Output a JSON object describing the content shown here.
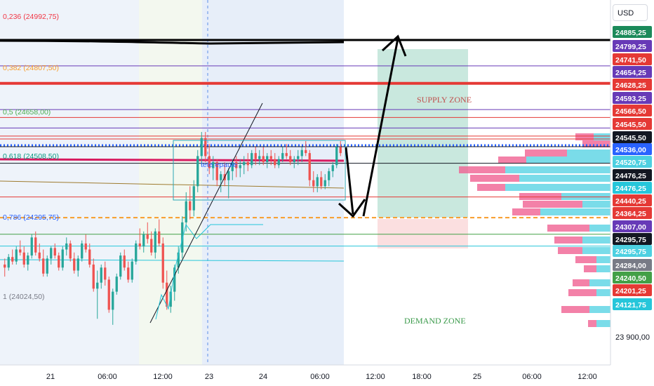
{
  "currency": "USD",
  "colors": {
    "up": "#26a69a",
    "down": "#ef5350",
    "supply_zone": "#b7e0d3",
    "demand_zone": "#f8c9cc",
    "fib_orange": "#f89d2a",
    "fib_red": "#e53935",
    "fib_gray": "#787b86",
    "purple": "#5b3fb5",
    "profile_pink": "#f06292",
    "profile_cyan": "#4dd0e1"
  },
  "chart_data": {
    "type": "candlestick",
    "ylim": [
      23850,
      25050
    ],
    "x_tick_labels": [
      "21",
      "06:00",
      "12:00",
      "23",
      "24",
      "06:00",
      "12:00",
      "18:00",
      "25",
      "06:00",
      "12:00"
    ],
    "fib_levels": [
      {
        "ratio": "0,236",
        "price": "24992,75",
        "color": "#f23645"
      },
      {
        "ratio": "0,382",
        "price": "24807,50",
        "color": "#f89d2a"
      },
      {
        "ratio": "0,5",
        "price": "24658,00",
        "color": "#4caf50"
      },
      {
        "ratio": "0,618",
        "price": "24508,50",
        "color": "#089981"
      },
      {
        "ratio": "0,786",
        "price": "24295,75",
        "color": "#2962ff"
      },
      {
        "ratio": "1",
        "price": "24024,50",
        "color": "#787b86"
      }
    ],
    "price_labels": [
      {
        "text": "24885,25",
        "value": 24885.25,
        "color": "#1b8a5a"
      },
      {
        "text": "24799,25",
        "value": 24799.25,
        "color": "#673ab7"
      },
      {
        "text": "24741,50",
        "value": 24741.5,
        "color": "#e53935"
      },
      {
        "text": "24654,25",
        "value": 24654.25,
        "color": "#673ab7"
      },
      {
        "text": "24628,25",
        "value": 24628.25,
        "color": "#e53935"
      },
      {
        "text": "24593,25",
        "value": 24593.25,
        "color": "#673ab7"
      },
      {
        "text": "24566,50",
        "value": 24566.5,
        "color": "#e53935"
      },
      {
        "text": "24545,50",
        "value": 24545.5,
        "color": "#e53935"
      },
      {
        "text": "24545,50",
        "value": 24545.5,
        "color": "#131722"
      },
      {
        "text": "24536,00",
        "value": 24536.0,
        "color": "#2962ff"
      },
      {
        "text": "24520,75",
        "value": 24520.75,
        "color": "#4dd0e1"
      },
      {
        "text": "24476,25",
        "value": 24476.25,
        "color": "#131722"
      },
      {
        "text": "24476,25",
        "value": 24476.25,
        "color": "#26c6da"
      },
      {
        "text": "24440,25",
        "value": 24440.25,
        "color": "#e53935"
      },
      {
        "text": "24364,25",
        "value": 24364.25,
        "color": "#e53935"
      },
      {
        "text": "24307,00",
        "value": 24307.0,
        "color": "#673ab7"
      },
      {
        "text": "24295,75",
        "value": 24295.75,
        "color": "#131722"
      },
      {
        "text": "24295,75",
        "value": 24295.75,
        "color": "#4dd0e1"
      },
      {
        "text": "24284,00",
        "value": 24284.0,
        "color": "#787b86"
      },
      {
        "text": "24240,50",
        "value": 24240.5,
        "color": "#43a047"
      },
      {
        "text": "24201,25",
        "value": 24201.25,
        "color": "#e53935"
      },
      {
        "text": "24121,75",
        "value": 24121.75,
        "color": "#26c6da"
      },
      {
        "text": "23 900,00",
        "value": 23900.0,
        "color": "none"
      }
    ],
    "horizontal_levels": [
      {
        "value": 24885.25,
        "color": "#000000",
        "style": "thick"
      },
      {
        "value": 24799.25,
        "color": "#673ab7",
        "style": "thin"
      },
      {
        "value": 24741.5,
        "color": "#e53935",
        "style": "medium"
      },
      {
        "value": 24654.25,
        "color": "#673ab7",
        "style": "thin"
      },
      {
        "value": 24628.25,
        "color": "#e53935",
        "style": "thin"
      },
      {
        "value": 24593.25,
        "color": "#673ab7",
        "style": "thin"
      },
      {
        "value": 24566.5,
        "color": "#e53935",
        "style": "thin"
      },
      {
        "value": 24536.0,
        "color": "#2962ff",
        "style": "dotted"
      },
      {
        "value": 24476.25,
        "color": "#131722",
        "style": "thin"
      },
      {
        "value": 24364.25,
        "color": "#e53935",
        "style": "thin"
      },
      {
        "value": 24295.75,
        "color": "#f89d2a",
        "style": "dashed"
      },
      {
        "value": 24240.5,
        "color": "#43a047",
        "style": "thin"
      },
      {
        "value": 24201.25,
        "color": "#26c6da",
        "style": "thin"
      }
    ],
    "annotations": {
      "supply_zone": "SUPPLY ZONE",
      "demand_zone": "DEMAND  ZONE",
      "pattern": "tete  epaule"
    },
    "candles": [
      [
        24140,
        24160,
        24100,
        24130
      ],
      [
        24130,
        24175,
        24120,
        24165
      ],
      [
        24165,
        24190,
        24140,
        24150
      ],
      [
        24150,
        24200,
        24140,
        24190
      ],
      [
        24190,
        24220,
        24170,
        24180
      ],
      [
        24180,
        24200,
        24130,
        24140
      ],
      [
        24140,
        24180,
        24120,
        24170
      ],
      [
        24170,
        24240,
        24160,
        24230
      ],
      [
        24230,
        24250,
        24170,
        24180
      ],
      [
        24180,
        24210,
        24150,
        24160
      ],
      [
        24160,
        24190,
        24100,
        24110
      ],
      [
        24110,
        24170,
        24100,
        24160
      ],
      [
        24160,
        24200,
        24140,
        24195
      ],
      [
        24195,
        24210,
        24160,
        24170
      ],
      [
        24170,
        24180,
        24120,
        24130
      ],
      [
        24130,
        24200,
        24120,
        24190
      ],
      [
        24190,
        24230,
        24170,
        24210
      ],
      [
        24210,
        24220,
        24150,
        24160
      ],
      [
        24160,
        24180,
        24110,
        24120
      ],
      [
        24120,
        24170,
        24100,
        24160
      ],
      [
        24160,
        24220,
        24150,
        24210
      ],
      [
        24210,
        24240,
        24180,
        24190
      ],
      [
        24190,
        24210,
        24130,
        24140
      ],
      [
        24140,
        24160,
        24050,
        24060
      ],
      [
        24060,
        24120,
        23960,
        24080
      ],
      [
        24080,
        24140,
        24060,
        24130
      ],
      [
        24130,
        24150,
        24070,
        24090
      ],
      [
        24090,
        24100,
        23980,
        23990
      ],
      [
        23990,
        24060,
        23940,
        24050
      ],
      [
        24050,
        24110,
        24040,
        24100
      ],
      [
        24100,
        24180,
        24090,
        24170
      ],
      [
        24170,
        24190,
        24120,
        24130
      ],
      [
        24130,
        24150,
        24080,
        24090
      ],
      [
        24090,
        24160,
        24080,
        24150
      ],
      [
        24150,
        24220,
        24140,
        24210
      ],
      [
        24210,
        24260,
        24190,
        24200
      ],
      [
        24200,
        24250,
        24180,
        24240
      ],
      [
        24240,
        24280,
        24210,
        24225
      ],
      [
        24225,
        24250,
        24170,
        24180
      ],
      [
        24180,
        24260,
        24160,
        24250
      ],
      [
        24250,
        24290,
        24200,
        24210
      ],
      [
        24210,
        24230,
        24060,
        24080
      ],
      [
        24080,
        24120,
        23990,
        24000
      ],
      [
        24000,
        24070,
        23980,
        24050
      ],
      [
        24050,
        24140,
        24020,
        24130
      ],
      [
        24130,
        24200,
        24110,
        24180
      ],
      [
        24180,
        24300,
        24160,
        24280
      ],
      [
        24280,
        24380,
        24250,
        24350
      ],
      [
        24350,
        24400,
        24290,
        24320
      ],
      [
        24320,
        24420,
        24300,
        24400
      ],
      [
        24400,
        24520,
        24380,
        24500
      ],
      [
        24500,
        24580,
        24470,
        24560
      ],
      [
        24560,
        24580,
        24480,
        24500
      ],
      [
        24500,
        24540,
        24440,
        24460
      ],
      [
        24460,
        24500,
        24420,
        24480
      ],
      [
        24480,
        24490,
        24400,
        24420
      ],
      [
        24420,
        24450,
        24380,
        24440
      ],
      [
        24440,
        24480,
        24400,
        24420
      ],
      [
        24420,
        24460,
        24360,
        24450
      ],
      [
        24450,
        24490,
        24420,
        24480
      ],
      [
        24480,
        24500,
        24430,
        24460
      ],
      [
        24460,
        24490,
        24430,
        24470
      ],
      [
        24470,
        24500,
        24440,
        24480
      ],
      [
        24480,
        24510,
        24450,
        24470
      ],
      [
        24470,
        24520,
        24460,
        24510
      ],
      [
        24510,
        24530,
        24470,
        24490
      ],
      [
        24490,
        24520,
        24470,
        24500
      ],
      [
        24500,
        24530,
        24470,
        24480
      ],
      [
        24480,
        24510,
        24460,
        24500
      ],
      [
        24500,
        24520,
        24470,
        24490
      ],
      [
        24490,
        24510,
        24460,
        24470
      ],
      [
        24470,
        24500,
        24460,
        24490
      ],
      [
        24490,
        24530,
        24480,
        24510
      ],
      [
        24510,
        24540,
        24490,
        24500
      ],
      [
        24500,
        24520,
        24470,
        24480
      ],
      [
        24480,
        24500,
        24460,
        24490
      ],
      [
        24490,
        24520,
        24470,
        24500
      ],
      [
        24500,
        24530,
        24480,
        24520
      ],
      [
        24520,
        24550,
        24500,
        24510
      ],
      [
        24510,
        24520,
        24400,
        24420
      ],
      [
        24420,
        24450,
        24380,
        24400
      ],
      [
        24400,
        24440,
        24380,
        24430
      ],
      [
        24430,
        24450,
        24390,
        24400
      ],
      [
        24400,
        24440,
        24390,
        24420
      ],
      [
        24420,
        24460,
        24400,
        24450
      ],
      [
        24450,
        24480,
        24430,
        24470
      ],
      [
        24470,
        24540,
        24460,
        24530
      ],
      [
        24530,
        24550,
        24500,
        24510
      ]
    ]
  }
}
